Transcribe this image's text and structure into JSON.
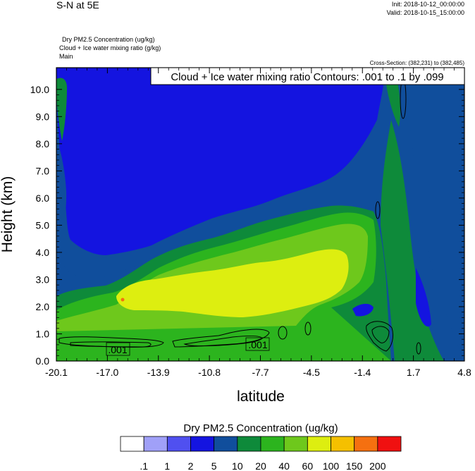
{
  "header": {
    "title": "S-N at 5E",
    "init": "Init: 2018-10-12_00:00:00",
    "valid": "Valid: 2018-10-15_15:00:00",
    "desc_lines": [
      "Dry PM2.5 Concentration   (ug/kg)",
      "Cloud + Ice water mixing ratio   (g/kg)",
      "Main"
    ],
    "cross_section": "Cross-Section: (382,231) to (382,485)"
  },
  "chart_data": {
    "type": "heatmap",
    "title": "S-N at 5E",
    "xlabel": "latitude",
    "ylabel": "Height (km)",
    "x_ticks": [
      "-20.1",
      "-17.0",
      "-13.9",
      "-10.8",
      "-7.7",
      "-4.5",
      "-1.4",
      "1.7",
      "4.8"
    ],
    "y_ticks": [
      "0.0",
      "1.0",
      "2.0",
      "3.0",
      "4.0",
      "5.0",
      "6.0",
      "7.0",
      "8.0",
      "9.0",
      "10.0"
    ],
    "xlim": [
      -20.1,
      4.8
    ],
    "ylim": [
      0.0,
      10.8
    ],
    "contour_title": "Cloud + Ice water mixing ratio Contours: .001 to .1 by .099",
    "contour_labels": [
      ".001",
      ".001"
    ],
    "colorbar": {
      "title": "Dry PM2.5 Concentration  (ug/kg)",
      "levels": [
        ".1",
        "1",
        "2",
        "5",
        "10",
        "20",
        "40",
        "60",
        "100",
        "150",
        "200"
      ],
      "colors": [
        "#ffffff",
        "#a0a0f8",
        "#5050f0",
        "#1414e0",
        "#104e9c",
        "#0e8a3a",
        "#2cb41e",
        "#6ec81c",
        "#ddee10",
        "#f5c000",
        "#f57010",
        "#f01010"
      ]
    }
  }
}
